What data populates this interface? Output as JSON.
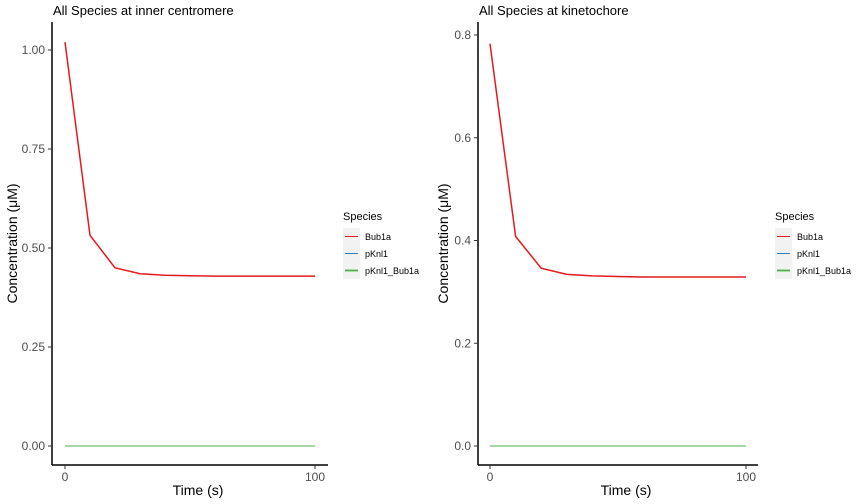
{
  "chart_data": [
    {
      "type": "line",
      "title": "All Species at inner centromere",
      "xlabel": "Time (s)",
      "ylabel": "Concentration (μM)",
      "xlim": [
        0,
        100
      ],
      "ylim": [
        0,
        1.02
      ],
      "x_ticks": [
        "0",
        "100"
      ],
      "y_ticks": [
        "0.00",
        "0.25",
        "0.50",
        "0.75",
        "1.00"
      ],
      "x_tick_values": [
        0,
        100
      ],
      "y_tick_values": [
        0,
        0.25,
        0.5,
        0.75,
        1.0
      ],
      "grid": false,
      "legend": {
        "title": "Species",
        "position": "right"
      },
      "x": [
        0,
        10,
        20,
        30,
        40,
        50,
        60,
        70,
        80,
        90,
        100
      ],
      "series": [
        {
          "name": "Bub1a",
          "color": "#e41a1c",
          "values": [
            1.02,
            0.532,
            0.45,
            0.435,
            0.431,
            0.43,
            0.429,
            0.429,
            0.429,
            0.429,
            0.429
          ]
        },
        {
          "name": "pKnl1",
          "color": "#377eb8",
          "values": [
            0,
            0,
            0,
            0,
            0,
            0,
            0,
            0,
            0,
            0,
            0
          ]
        },
        {
          "name": "pKnl1_Bub1a",
          "color": "#4daf4a",
          "values": [
            0,
            0,
            0,
            0,
            0,
            0,
            0,
            0,
            0,
            0,
            0
          ]
        }
      ]
    },
    {
      "type": "line",
      "title": "All Species at kinetochore",
      "xlabel": "Time (s)",
      "ylabel": "Concentration (μM)",
      "xlim": [
        0,
        100
      ],
      "ylim": [
        0,
        0.79
      ],
      "x_ticks": [
        "0",
        "100"
      ],
      "y_ticks": [
        "0.0",
        "0.2",
        "0.4",
        "0.6",
        "0.8"
      ],
      "x_tick_values": [
        0,
        100
      ],
      "y_tick_values": [
        0,
        0.2,
        0.4,
        0.6,
        0.8
      ],
      "grid": false,
      "legend": {
        "title": "Species",
        "position": "right"
      },
      "x": [
        0,
        10,
        20,
        30,
        40,
        50,
        60,
        70,
        80,
        90,
        100
      ],
      "series": [
        {
          "name": "Bub1a",
          "color": "#e41a1c",
          "values": [
            0.783,
            0.408,
            0.346,
            0.334,
            0.331,
            0.33,
            0.329,
            0.329,
            0.329,
            0.329,
            0.329
          ]
        },
        {
          "name": "pKnl1",
          "color": "#377eb8",
          "values": [
            0,
            0,
            0,
            0,
            0,
            0,
            0,
            0,
            0,
            0,
            0
          ]
        },
        {
          "name": "pKnl1_Bub1a",
          "color": "#4daf4a",
          "values": [
            0,
            0,
            0,
            0,
            0,
            0,
            0,
            0,
            0,
            0,
            0
          ]
        }
      ]
    }
  ]
}
